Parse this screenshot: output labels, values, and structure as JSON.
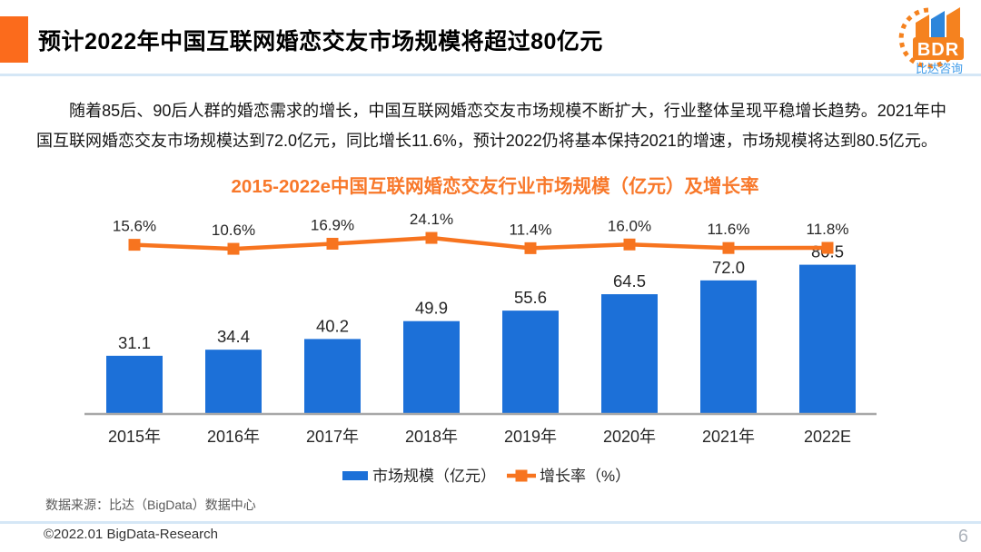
{
  "header": {
    "title": "预计2022年中国互联网婚恋交友市场规模将超过80亿元",
    "logo_text": "BDR",
    "logo_subtext": "比达咨询"
  },
  "body": {
    "paragraph": "随着85后、90后人群的婚恋需求的增长，中国互联网婚恋交友市场规模不断扩大，行业整体呈现平稳增长趋势。2021年中国互联网婚恋交友市场规模达到72.0亿元，同比增长11.6%，预计2022仍将基本保持2021的增速，市场规模将达到80.5亿元。"
  },
  "chart_data": {
    "type": "bar",
    "title": "2015-2022e中国互联网婚恋交友行业市场规模（亿元）及增长率",
    "categories": [
      "2015年",
      "2016年",
      "2017年",
      "2018年",
      "2019年",
      "2020年",
      "2021年",
      "2022E"
    ],
    "series": [
      {
        "name": "市场规模（亿元）",
        "type": "bar",
        "values": [
          31.1,
          34.4,
          40.2,
          49.9,
          55.6,
          64.5,
          72.0,
          80.5
        ],
        "color": "#1C70D8"
      },
      {
        "name": "增长率（%）",
        "type": "line",
        "values": [
          15.6,
          10.6,
          16.9,
          24.1,
          11.4,
          16.0,
          11.6,
          11.8
        ],
        "color": "#F7741F"
      }
    ],
    "xlabel": "",
    "ylabel": "",
    "y_axis_visible": false,
    "grid": false,
    "legend_position": "bottom",
    "title_color": "#F8782A",
    "axis_line_color": "#A8A8A8",
    "label_color": "#262626"
  },
  "source": "数据来源：比达（BigData）数据中心",
  "footer": {
    "copyright": "©2022.01 BigData-Research",
    "page_number": "6"
  },
  "colors": {
    "accent_orange": "#FB6B1C",
    "bar_blue": "#1C70D8",
    "line_orange": "#F7741F",
    "divider_blue": "#D5E7F6",
    "logo_orange": "#F5821F",
    "logo_blue": "#2E86DB"
  }
}
